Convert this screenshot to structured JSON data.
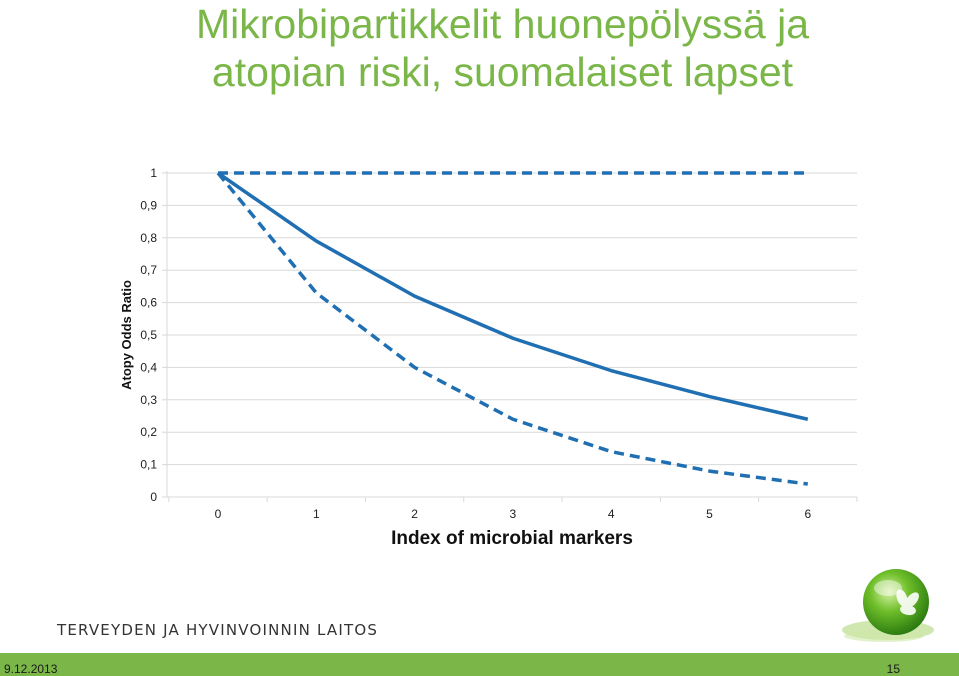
{
  "slide": {
    "title_line1": "Mikrobipartikkelit huonepölyssä ja",
    "title_line2": "atopian riski, suomalaiset lapset",
    "organization": "TERVEYDEN JA HYVINVOINNIN LAITOS",
    "date": "9.12.2013",
    "page_number": "15"
  },
  "colors": {
    "accent_green": "#7ab648",
    "series_blue": "#1f6fb2",
    "gridline": "#d9d9d9"
  },
  "chart_data": {
    "type": "line",
    "title": "",
    "xlabel": "Index of microbial markers",
    "ylabel": "Atopy Odds Ratio",
    "x": [
      0,
      1,
      2,
      3,
      4,
      5,
      6
    ],
    "x_tick_labels": [
      "0",
      "1",
      "2",
      "3",
      "4",
      "5",
      "6"
    ],
    "y_tick_labels": [
      "0",
      "0,1",
      "0,2",
      "0,3",
      "0,4",
      "0,5",
      "0,6",
      "0,7",
      "0,8",
      "0,9",
      "1"
    ],
    "ylim": [
      0,
      1
    ],
    "grid": true,
    "series": [
      {
        "style": "solid",
        "values": [
          1.0,
          0.79,
          0.62,
          0.49,
          0.39,
          0.31,
          0.24
        ]
      },
      {
        "style": "dashed",
        "values": [
          1.0,
          0.63,
          0.4,
          0.24,
          0.14,
          0.08,
          0.04
        ]
      },
      {
        "style": "dashed",
        "values": [
          1.0,
          1.0,
          1.0,
          1.0,
          1.0,
          1.0,
          1.0
        ]
      }
    ]
  }
}
